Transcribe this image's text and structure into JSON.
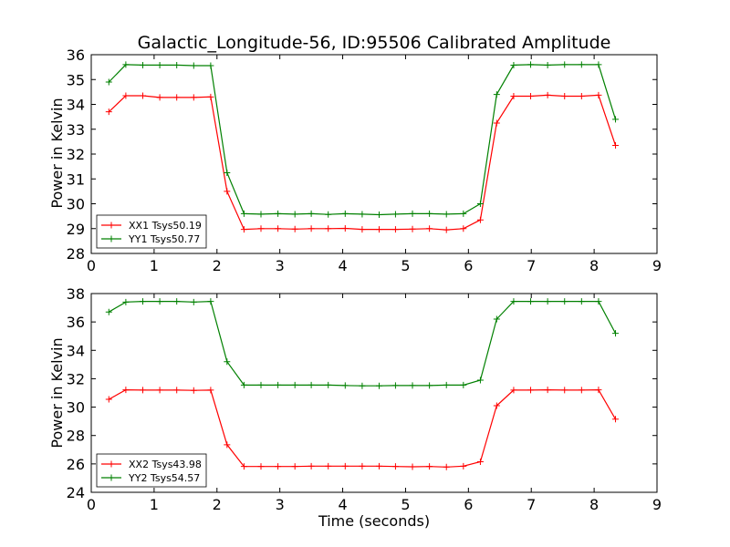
{
  "chart_data": [
    {
      "type": "line",
      "title": "Galactic_Longitude-56, ID:95506 Calibrated Amplitude",
      "xlabel": "",
      "ylabel": "Power in Kelvin",
      "xlim": [
        0,
        9
      ],
      "ylim": [
        28,
        36
      ],
      "xticks": [
        "0",
        "1",
        "2",
        "3",
        "4",
        "5",
        "6",
        "7",
        "8",
        "9"
      ],
      "yticks": [
        "28",
        "29",
        "30",
        "31",
        "32",
        "33",
        "34",
        "35",
        "36"
      ],
      "legend_position": "lower-left",
      "x": [
        0.28,
        0.55,
        0.82,
        1.09,
        1.36,
        1.63,
        1.9,
        2.16,
        2.43,
        2.7,
        2.97,
        3.24,
        3.5,
        3.77,
        4.04,
        4.31,
        4.58,
        4.84,
        5.11,
        5.38,
        5.65,
        5.92,
        6.19,
        6.45,
        6.72,
        6.99,
        7.26,
        7.53,
        7.8,
        8.07,
        8.34
      ],
      "series": [
        {
          "name": "XX1 Tsys50.19",
          "color": "#ff0000",
          "values": [
            33.7,
            34.35,
            34.35,
            34.28,
            34.28,
            34.28,
            34.3,
            30.5,
            28.97,
            29.0,
            29.0,
            28.98,
            29.0,
            29.0,
            29.01,
            28.97,
            28.97,
            28.97,
            28.98,
            29.0,
            28.95,
            29.0,
            29.35,
            33.25,
            34.33,
            34.33,
            34.37,
            34.33,
            34.33,
            34.37,
            32.35
          ]
        },
        {
          "name": "YY1 Tsys50.77",
          "color": "#008000",
          "values": [
            34.9,
            35.6,
            35.58,
            35.58,
            35.58,
            35.56,
            35.56,
            31.25,
            29.6,
            29.58,
            29.6,
            29.58,
            29.6,
            29.57,
            29.6,
            29.58,
            29.56,
            29.58,
            29.6,
            29.6,
            29.58,
            29.6,
            30.0,
            34.4,
            35.58,
            35.6,
            35.58,
            35.6,
            35.6,
            35.6,
            33.4
          ]
        }
      ]
    },
    {
      "type": "line",
      "title": "",
      "xlabel": "Time (seconds)",
      "ylabel": "Power in Kelvin",
      "xlim": [
        0,
        9
      ],
      "ylim": [
        24,
        38
      ],
      "xticks": [
        "0",
        "1",
        "2",
        "3",
        "4",
        "5",
        "6",
        "7",
        "8",
        "9"
      ],
      "yticks": [
        "24",
        "26",
        "28",
        "30",
        "32",
        "34",
        "36",
        "38"
      ],
      "legend_position": "lower-left",
      "x": [
        0.28,
        0.55,
        0.82,
        1.09,
        1.36,
        1.63,
        1.9,
        2.16,
        2.43,
        2.7,
        2.97,
        3.24,
        3.5,
        3.77,
        4.04,
        4.31,
        4.58,
        4.84,
        5.11,
        5.38,
        5.65,
        5.92,
        6.19,
        6.45,
        6.72,
        6.99,
        7.26,
        7.53,
        7.8,
        8.07,
        8.34
      ],
      "series": [
        {
          "name": "XX2 Tsys43.98",
          "color": "#ff0000",
          "values": [
            30.55,
            31.22,
            31.2,
            31.2,
            31.2,
            31.18,
            31.2,
            27.35,
            25.82,
            25.82,
            25.82,
            25.82,
            25.84,
            25.84,
            25.84,
            25.84,
            25.84,
            25.82,
            25.8,
            25.82,
            25.78,
            25.84,
            26.15,
            30.1,
            31.2,
            31.2,
            31.22,
            31.2,
            31.2,
            31.22,
            29.15
          ]
        },
        {
          "name": "YY2 Tsys54.57",
          "color": "#008000",
          "values": [
            36.7,
            37.4,
            37.45,
            37.45,
            37.45,
            37.4,
            37.45,
            33.2,
            31.55,
            31.55,
            31.55,
            31.55,
            31.55,
            31.55,
            31.52,
            31.5,
            31.5,
            31.52,
            31.52,
            31.52,
            31.55,
            31.55,
            31.9,
            36.2,
            37.45,
            37.45,
            37.45,
            37.45,
            37.45,
            37.45,
            35.2
          ]
        }
      ]
    }
  ]
}
